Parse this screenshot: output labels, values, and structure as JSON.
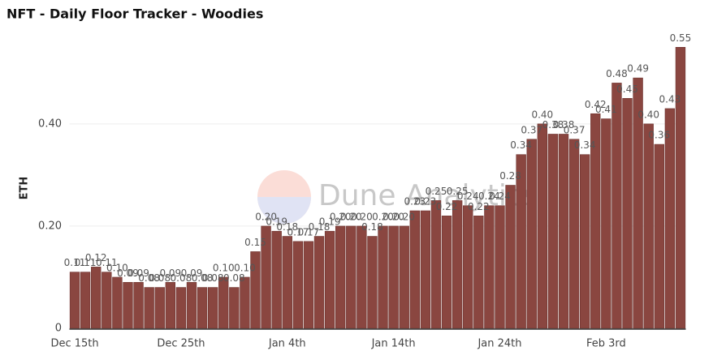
{
  "chart_data": {
    "type": "bar",
    "title": "NFT - Daily Floor Tracker - Woodies",
    "y_label": "ETH",
    "watermark": "Dune Analytics",
    "categories": [
      "Dec 15th",
      null,
      null,
      null,
      null,
      null,
      null,
      null,
      null,
      null,
      "Dec 25th",
      null,
      null,
      null,
      null,
      null,
      null,
      null,
      null,
      null,
      "Jan 4th",
      null,
      null,
      null,
      null,
      null,
      null,
      null,
      null,
      null,
      "Jan 14th",
      null,
      null,
      null,
      null,
      null,
      null,
      null,
      null,
      null,
      "Jan 24th",
      null,
      null,
      null,
      null,
      null,
      null,
      null,
      null,
      null,
      "Feb 3rd",
      null,
      null,
      null,
      null,
      null,
      null,
      null
    ],
    "values": [
      0.11,
      0.11,
      0.12,
      0.11,
      0.1,
      0.09,
      0.09,
      0.08,
      0.08,
      0.09,
      0.08,
      0.09,
      0.08,
      0.08,
      0.1,
      0.08,
      0.1,
      0.15,
      0.2,
      0.19,
      0.18,
      0.17,
      0.17,
      0.18,
      0.19,
      0.2,
      0.2,
      0.2,
      0.18,
      0.2,
      0.2,
      0.2,
      0.23,
      0.23,
      0.25,
      0.22,
      0.25,
      0.24,
      0.22,
      0.24,
      0.24,
      0.28,
      0.34,
      0.37,
      0.4,
      0.38,
      0.38,
      0.37,
      0.34,
      0.42,
      0.41,
      0.48,
      0.45,
      0.49,
      0.4,
      0.36,
      0.43,
      0.55
    ],
    "value_labels": [
      "0.11",
      "0.11",
      "0.12",
      "0.11",
      "0.10",
      "0.09",
      "0.09",
      "0.08",
      "0.08",
      "0.09",
      "0.08",
      "0.09",
      "0.08",
      "0.08",
      "0.10",
      "0.08",
      "0.10",
      "0.15",
      "0.20",
      "0.19",
      "0.18",
      "0.17",
      "0.17",
      "0.18",
      "0.19",
      "0.20",
      "0.20",
      "0.20",
      "0.18",
      "0.20",
      "0.20",
      "0.20",
      "0.23",
      "0.23",
      "0.25",
      "0.22",
      "0.25",
      "0.24",
      "0.22",
      "0.24",
      "0.24",
      "0.28",
      "0.34",
      "0.37",
      "0.40",
      "0.38",
      "0.38",
      "0.37",
      "0.34",
      "0.42",
      "0.41",
      "0.48",
      "0.45",
      "0.49",
      "0.40",
      "0.36",
      "0.43",
      "0.55"
    ],
    "color": "#8a4640",
    "ylim": [
      0,
      0.56
    ],
    "yticks": [
      0,
      {
        "value": 0.2,
        "label": "0.20"
      },
      {
        "value": 0.4,
        "label": "0.40"
      }
    ],
    "grid": true
  }
}
